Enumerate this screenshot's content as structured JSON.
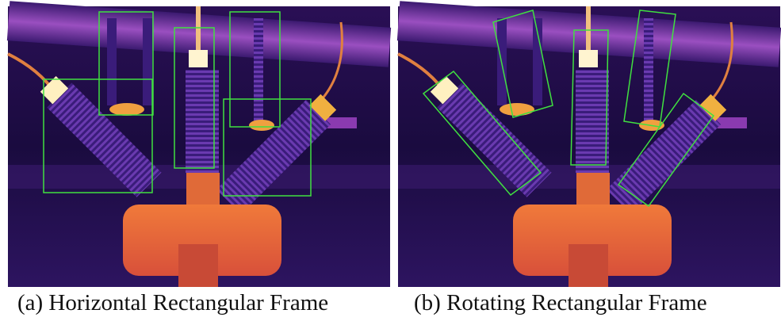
{
  "panels": [
    {
      "caption": "(a) Horizontal Rectangular Frame"
    },
    {
      "caption": "(b) Rotating Rectangular Frame"
    }
  ]
}
